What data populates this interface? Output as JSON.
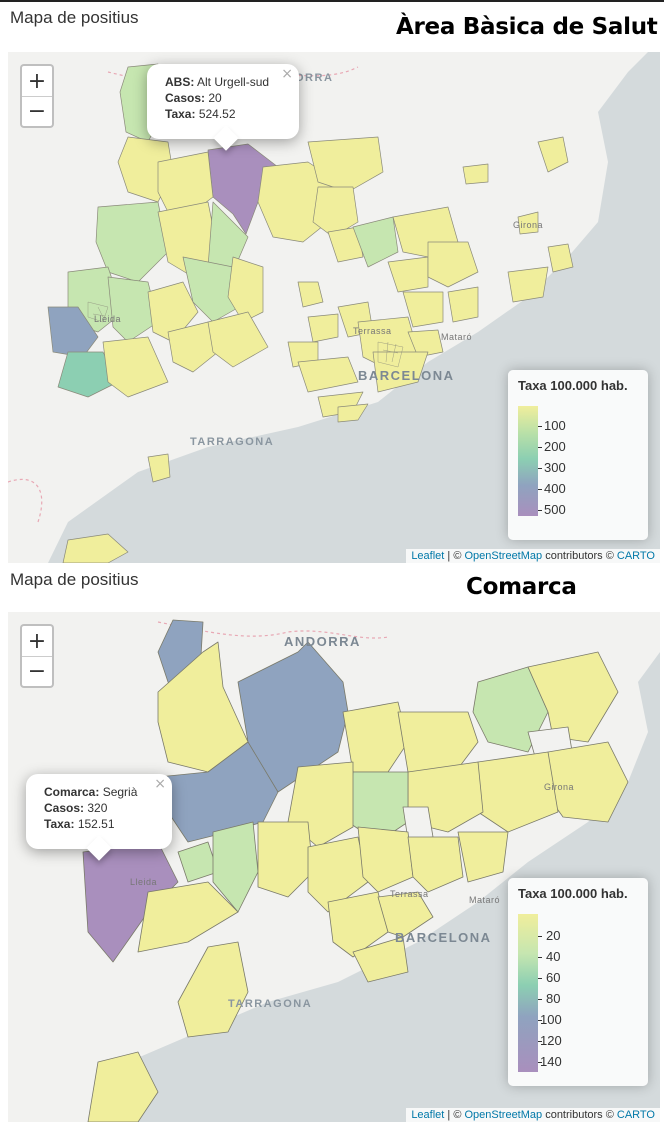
{
  "maps": [
    {
      "section_label": "Mapa de positius",
      "title": "Àrea Bàsica de Salut",
      "popup": {
        "k1": "ABS:",
        "v1": "Alt Urgell-sud",
        "k2": "Casos:",
        "v2": "20",
        "k3": "Taxa:",
        "v3": "524.52",
        "close": "×"
      },
      "legend": {
        "title": "Taxa 100.000 hab.",
        "ticks": [
          "100",
          "200",
          "300",
          "400",
          "500"
        ]
      },
      "places": {
        "andorra": "ORRA",
        "girona": "Girona",
        "lleida": "Lleida",
        "terrassa": "Terrassa",
        "mataro": "Mataró",
        "barcelona": "BARCELONA",
        "tarragona": "TARRAGONA"
      }
    },
    {
      "section_label": "Mapa de positius",
      "title": "Comarca",
      "popup": {
        "k1": "Comarca:",
        "v1": "Segrià",
        "k2": "Casos:",
        "v2": "320",
        "k3": "Taxa:",
        "v3": "152.51",
        "close": "×"
      },
      "legend": {
        "title": "Taxa 100.000 hab.",
        "ticks": [
          "20",
          "40",
          "60",
          "80",
          "100",
          "120",
          "140"
        ]
      },
      "places": {
        "andorra": "ANDORRA",
        "girona": "Girona",
        "lleida": "Lleida",
        "terrassa": "Terrassa",
        "mataro": "Mataró",
        "barcelona": "BARCELONA",
        "tarragona": "TARRAGONA"
      }
    }
  ],
  "controls": {
    "zoom_in": "+",
    "zoom_out": "−"
  },
  "attribution": {
    "leaflet": "Leaflet",
    "sep": " | © ",
    "osm": "OpenStreetMap",
    "contrib": " contributors © ",
    "carto": "CARTO"
  },
  "colors": {
    "sea": "#d4dadc",
    "land": "#f2f2f0",
    "yellow": "#f0ee9c",
    "green": "#b8e0a8",
    "teal": "#8ccfb2",
    "steel": "#8fa3bf",
    "purple": "#a98fbd"
  }
}
